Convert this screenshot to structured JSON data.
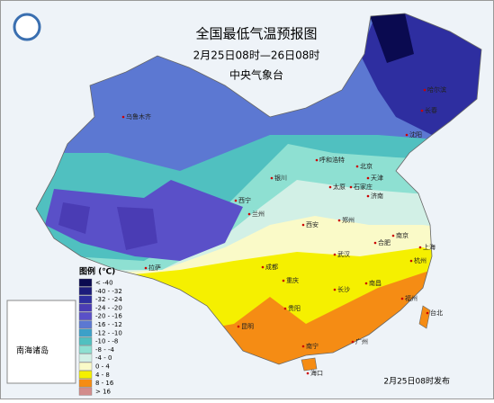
{
  "header": {
    "title": "全国最低气温预报图",
    "period": "2月25日08时—26日08时",
    "issuer": "中央气象台"
  },
  "legend": {
    "title": "图例 (℃)",
    "items": [
      {
        "label": "< -40",
        "color": "#0a0a50"
      },
      {
        "label": "-40 - -32",
        "color": "#1c1c7c"
      },
      {
        "label": "-32 - -24",
        "color": "#2e2ea0"
      },
      {
        "label": "-24 - -20",
        "color": "#4a3cb4"
      },
      {
        "label": "-20 - -16",
        "color": "#5a50c8"
      },
      {
        "label": "-16 - -12",
        "color": "#5c78d2"
      },
      {
        "label": "-12 - -10",
        "color": "#3ca0c8"
      },
      {
        "label": "-10 - -8",
        "color": "#50c0c0"
      },
      {
        "label": "-8 - -4",
        "color": "#8ee0d2"
      },
      {
        "label": "-4 - 0",
        "color": "#d2f0e6"
      },
      {
        "label": "0 - 4",
        "color": "#fafac8"
      },
      {
        "label": "4 - 8",
        "color": "#f5f000"
      },
      {
        "label": "8 - 16",
        "color": "#f58c14"
      },
      {
        "label": "> 16",
        "color": "#d28c8c"
      }
    ]
  },
  "cities": [
    "乌鲁木齐",
    "哈尔滨",
    "长春",
    "沈阳",
    "北京",
    "天津",
    "呼和浩特",
    "银川",
    "太原",
    "石家庄",
    "济南",
    "西宁",
    "兰州",
    "西安",
    "郑州",
    "拉萨",
    "成都",
    "武汉",
    "合肥",
    "南京",
    "上海",
    "杭州",
    "重庆",
    "长沙",
    "南昌",
    "福州",
    "贵阳",
    "昆明",
    "南宁",
    "广州",
    "台北",
    "海口"
  ],
  "inset": {
    "label": "南海诸岛"
  },
  "footer": {
    "note": "2月25日08时发布"
  }
}
